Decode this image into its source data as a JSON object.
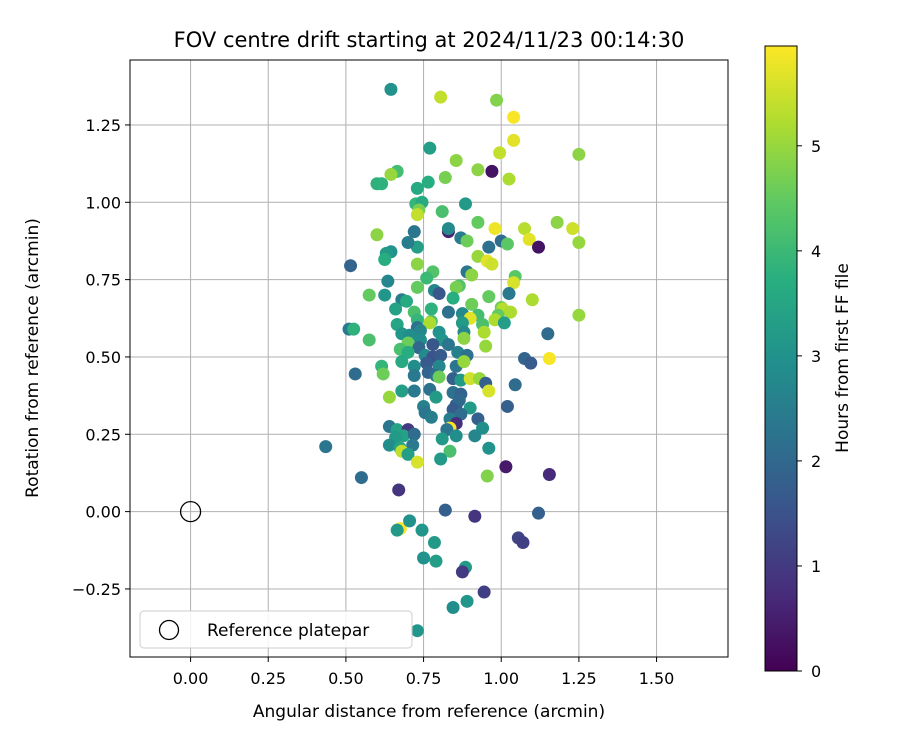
{
  "chart_data": {
    "type": "scatter",
    "title": "FOV centre drift starting at 2024/11/23 00:14:30",
    "xlabel": "Angular distance from reference (arcmin)",
    "ylabel": "Rotation from reference (arcmin)",
    "xlim": [
      -0.195,
      1.73
    ],
    "ylim": [
      -0.47,
      1.46
    ],
    "xticks": [
      0.0,
      0.25,
      0.5,
      0.75,
      1.0,
      1.25,
      1.5
    ],
    "xtick_labels": [
      "0.00",
      "0.25",
      "0.50",
      "0.75",
      "1.00",
      "1.25",
      "1.50"
    ],
    "yticks": [
      -0.25,
      0.0,
      0.25,
      0.5,
      0.75,
      1.0,
      1.25
    ],
    "ytick_labels": [
      "−0.25",
      "0.00",
      "0.25",
      "0.50",
      "0.75",
      "1.00",
      "1.25"
    ],
    "grid": true,
    "colormap": "viridis",
    "colorbar": {
      "label": "Hours from first FF file",
      "range": [
        0,
        5.95
      ],
      "ticks": [
        0,
        1,
        2,
        3,
        4,
        5
      ],
      "tick_labels": [
        "0",
        "1",
        "2",
        "3",
        "4",
        "5"
      ]
    },
    "reference": {
      "x": 0.0,
      "y": 0.0,
      "label": "Reference platepar",
      "marker": "open-circle"
    },
    "legend_position": "lower-left",
    "points": [
      [
        0.645,
        1.365,
        3.0
      ],
      [
        0.805,
        1.34,
        5.4
      ],
      [
        0.985,
        1.33,
        4.8
      ],
      [
        1.04,
        1.275,
        5.9
      ],
      [
        1.04,
        1.2,
        5.7
      ],
      [
        0.77,
        1.175,
        3.3
      ],
      [
        0.855,
        1.135,
        4.9
      ],
      [
        0.995,
        1.16,
        5.4
      ],
      [
        1.25,
        1.155,
        4.9
      ],
      [
        0.925,
        1.105,
        4.9
      ],
      [
        0.97,
        1.1,
        0.3
      ],
      [
        0.665,
        1.1,
        4.1
      ],
      [
        0.645,
        1.09,
        5.0
      ],
      [
        1.025,
        1.075,
        5.2
      ],
      [
        0.6,
        1.06,
        3.8
      ],
      [
        0.615,
        1.06,
        3.8
      ],
      [
        0.765,
        1.065,
        3.7
      ],
      [
        0.73,
        1.045,
        3.6
      ],
      [
        0.82,
        1.08,
        4.7
      ],
      [
        0.725,
        0.995,
        3.9
      ],
      [
        0.745,
        1.0,
        3.6
      ],
      [
        0.885,
        0.995,
        3.2
      ],
      [
        0.81,
        0.97,
        4.2
      ],
      [
        0.735,
        0.975,
        4.7
      ],
      [
        0.73,
        0.96,
        5.4
      ],
      [
        0.925,
        0.935,
        4.5
      ],
      [
        1.18,
        0.935,
        4.9
      ],
      [
        1.23,
        0.915,
        5.5
      ],
      [
        0.98,
        0.915,
        5.8
      ],
      [
        1.075,
        0.915,
        5.3
      ],
      [
        0.72,
        0.905,
        2.3
      ],
      [
        0.83,
        0.905,
        0.6
      ],
      [
        0.83,
        0.915,
        2.8
      ],
      [
        0.6,
        0.895,
        4.9
      ],
      [
        1.09,
        0.88,
        5.7
      ],
      [
        1.25,
        0.87,
        5.0
      ],
      [
        0.87,
        0.885,
        2.5
      ],
      [
        0.89,
        0.875,
        4.6
      ],
      [
        0.96,
        0.855,
        2.2
      ],
      [
        1.0,
        0.875,
        2.1
      ],
      [
        1.02,
        0.865,
        4.4
      ],
      [
        1.12,
        0.855,
        0.3
      ],
      [
        0.645,
        0.84,
        3.0
      ],
      [
        0.63,
        0.835,
        3.2
      ],
      [
        0.625,
        0.815,
        3.7
      ],
      [
        0.73,
        0.855,
        3.3
      ],
      [
        0.7,
        0.87,
        2.5
      ],
      [
        0.925,
        0.825,
        5.0
      ],
      [
        0.955,
        0.81,
        5.7
      ],
      [
        0.97,
        0.8,
        5.5
      ],
      [
        0.73,
        0.8,
        4.9
      ],
      [
        0.515,
        0.795,
        1.9
      ],
      [
        0.78,
        0.775,
        4.3
      ],
      [
        0.89,
        0.775,
        2.3
      ],
      [
        0.76,
        0.755,
        4.0
      ],
      [
        0.905,
        0.765,
        4.9
      ],
      [
        0.635,
        0.745,
        2.7
      ],
      [
        1.045,
        0.76,
        4.4
      ],
      [
        1.04,
        0.74,
        5.6
      ],
      [
        0.865,
        0.73,
        4.3
      ],
      [
        0.855,
        0.725,
        4.7
      ],
      [
        0.785,
        0.715,
        2.7
      ],
      [
        0.73,
        0.725,
        4.5
      ],
      [
        0.575,
        0.7,
        4.5
      ],
      [
        0.625,
        0.7,
        3.1
      ],
      [
        0.8,
        0.705,
        1.6
      ],
      [
        0.845,
        0.69,
        3.7
      ],
      [
        0.905,
        0.67,
        4.6
      ],
      [
        0.96,
        0.695,
        4.5
      ],
      [
        1.025,
        0.705,
        2.4
      ],
      [
        1.1,
        0.685,
        5.2
      ],
      [
        0.68,
        0.685,
        2.5
      ],
      [
        0.695,
        0.68,
        3.6
      ],
      [
        0.66,
        0.655,
        3.4
      ],
      [
        0.72,
        0.645,
        4.2
      ],
      [
        0.775,
        0.655,
        3.8
      ],
      [
        0.83,
        0.645,
        2.2
      ],
      [
        1.0,
        0.66,
        4.6
      ],
      [
        1.005,
        0.655,
        5.3
      ],
      [
        1.03,
        0.645,
        5.2
      ],
      [
        0.875,
        0.64,
        2.8
      ],
      [
        0.925,
        0.635,
        4.1
      ],
      [
        0.9,
        0.625,
        5.7
      ],
      [
        0.99,
        0.635,
        4.5
      ],
      [
        0.98,
        0.62,
        5.2
      ],
      [
        1.25,
        0.635,
        5.0
      ],
      [
        0.73,
        0.62,
        3.9
      ],
      [
        0.775,
        0.615,
        4.2
      ],
      [
        0.77,
        0.61,
        5.2
      ],
      [
        0.665,
        0.605,
        3.5
      ],
      [
        0.875,
        0.61,
        3.2
      ],
      [
        0.94,
        0.605,
        4.2
      ],
      [
        1.01,
        0.61,
        3.3
      ],
      [
        0.51,
        0.59,
        2.4
      ],
      [
        0.525,
        0.59,
        3.8
      ],
      [
        0.73,
        0.595,
        2.2
      ],
      [
        0.74,
        0.585,
        2.7
      ],
      [
        0.8,
        0.58,
        3.0
      ],
      [
        0.88,
        0.58,
        2.8
      ],
      [
        0.945,
        0.58,
        5.2
      ],
      [
        0.68,
        0.575,
        3.1
      ],
      [
        0.705,
        0.57,
        2.9
      ],
      [
        0.74,
        0.555,
        2.9
      ],
      [
        0.81,
        0.555,
        3.1
      ],
      [
        0.88,
        0.56,
        4.9
      ],
      [
        0.575,
        0.555,
        4.2
      ],
      [
        1.15,
        0.575,
        2.1
      ],
      [
        0.7,
        0.545,
        4.6
      ],
      [
        0.78,
        0.54,
        1.6
      ],
      [
        0.83,
        0.54,
        2.3
      ],
      [
        0.95,
        0.535,
        5.0
      ],
      [
        0.735,
        0.53,
        2.0
      ],
      [
        0.675,
        0.525,
        4.2
      ],
      [
        0.7,
        0.515,
        3.7
      ],
      [
        0.755,
        0.505,
        2.8
      ],
      [
        0.78,
        0.5,
        1.5
      ],
      [
        0.805,
        0.505,
        1.7
      ],
      [
        0.86,
        0.515,
        2.6
      ],
      [
        0.89,
        0.505,
        2.2
      ],
      [
        1.075,
        0.495,
        1.9
      ],
      [
        1.095,
        0.48,
        1.7
      ],
      [
        1.155,
        0.495,
        5.9
      ],
      [
        0.68,
        0.485,
        3.6
      ],
      [
        0.72,
        0.47,
        2.9
      ],
      [
        0.76,
        0.48,
        1.7
      ],
      [
        0.8,
        0.47,
        2.7
      ],
      [
        0.855,
        0.47,
        2.3
      ],
      [
        0.88,
        0.485,
        5.0
      ],
      [
        0.615,
        0.47,
        3.9
      ],
      [
        0.62,
        0.445,
        4.6
      ],
      [
        0.53,
        0.445,
        2.1
      ],
      [
        0.72,
        0.44,
        2.4
      ],
      [
        0.765,
        0.45,
        1.9
      ],
      [
        0.79,
        0.44,
        2.2
      ],
      [
        0.8,
        0.435,
        4.6
      ],
      [
        0.845,
        0.43,
        1.8
      ],
      [
        0.87,
        0.425,
        3.2
      ],
      [
        0.9,
        0.43,
        5.5
      ],
      [
        0.93,
        0.43,
        5.0
      ],
      [
        0.95,
        0.415,
        1.8
      ],
      [
        1.045,
        0.41,
        2.1
      ],
      [
        0.68,
        0.39,
        3.3
      ],
      [
        0.72,
        0.39,
        2.4
      ],
      [
        0.77,
        0.395,
        2.2
      ],
      [
        0.79,
        0.37,
        3.2
      ],
      [
        0.845,
        0.385,
        2.2
      ],
      [
        0.87,
        0.38,
        1.9
      ],
      [
        0.96,
        0.39,
        5.6
      ],
      [
        0.64,
        0.37,
        5.0
      ],
      [
        0.75,
        0.34,
        2.6
      ],
      [
        0.855,
        0.345,
        1.8
      ],
      [
        0.865,
        0.36,
        2.0
      ],
      [
        0.9,
        0.335,
        3.2
      ],
      [
        1.02,
        0.34,
        1.8
      ],
      [
        0.755,
        0.32,
        2.3
      ],
      [
        0.775,
        0.305,
        2.5
      ],
      [
        0.845,
        0.33,
        1.7
      ],
      [
        0.87,
        0.315,
        2.1
      ],
      [
        0.835,
        0.3,
        2.5
      ],
      [
        0.925,
        0.3,
        1.8
      ],
      [
        0.855,
        0.285,
        0.8
      ],
      [
        0.835,
        0.27,
        5.9
      ],
      [
        0.825,
        0.265,
        2.3
      ],
      [
        0.94,
        0.27,
        2.9
      ],
      [
        0.64,
        0.275,
        2.3
      ],
      [
        0.665,
        0.265,
        3.4
      ],
      [
        0.7,
        0.265,
        1.0
      ],
      [
        0.685,
        0.245,
        3.4
      ],
      [
        0.66,
        0.24,
        3.2
      ],
      [
        0.72,
        0.25,
        2.1
      ],
      [
        0.855,
        0.245,
        2.9
      ],
      [
        0.915,
        0.245,
        2.7
      ],
      [
        0.81,
        0.235,
        3.2
      ],
      [
        0.64,
        0.215,
        2.9
      ],
      [
        0.675,
        0.205,
        3.5
      ],
      [
        0.715,
        0.215,
        2.4
      ],
      [
        0.435,
        0.21,
        2.3
      ],
      [
        0.96,
        0.205,
        3.0
      ],
      [
        0.68,
        0.195,
        5.4
      ],
      [
        0.7,
        0.185,
        3.3
      ],
      [
        0.835,
        0.195,
        4.2
      ],
      [
        0.805,
        0.17,
        3.2
      ],
      [
        0.73,
        0.16,
        5.6
      ],
      [
        0.955,
        0.115,
        4.8
      ],
      [
        1.015,
        0.145,
        0.4
      ],
      [
        1.155,
        0.12,
        0.7
      ],
      [
        0.55,
        0.11,
        2.1
      ],
      [
        0.67,
        0.07,
        0.9
      ],
      [
        0.82,
        0.005,
        1.8
      ],
      [
        0.915,
        -0.015,
        0.9
      ],
      [
        1.12,
        -0.005,
        1.8
      ],
      [
        0.675,
        -0.055,
        5.9
      ],
      [
        0.665,
        -0.06,
        3.2
      ],
      [
        0.705,
        -0.03,
        3.0
      ],
      [
        0.745,
        -0.06,
        3.1
      ],
      [
        1.055,
        -0.085,
        1.2
      ],
      [
        1.07,
        -0.1,
        1.1
      ],
      [
        0.785,
        -0.1,
        3.2
      ],
      [
        0.75,
        -0.15,
        3.0
      ],
      [
        0.79,
        -0.16,
        3.3
      ],
      [
        0.885,
        -0.18,
        3.2
      ],
      [
        0.875,
        -0.195,
        1.0
      ],
      [
        0.945,
        -0.26,
        1.1
      ],
      [
        0.89,
        -0.29,
        3.1
      ],
      [
        0.845,
        -0.31,
        2.9
      ],
      [
        0.73,
        -0.385,
        3.1
      ]
    ]
  }
}
